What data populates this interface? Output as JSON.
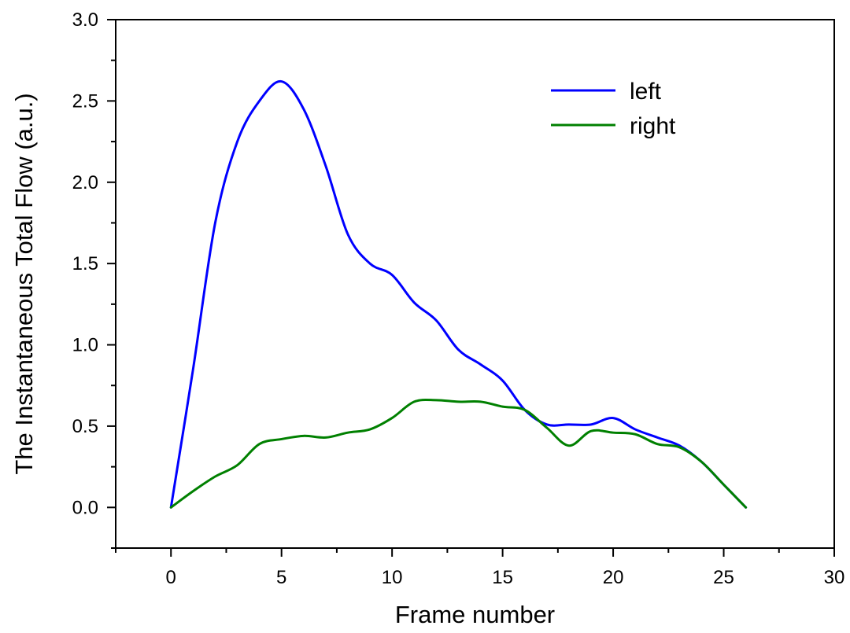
{
  "chart_data": {
    "type": "line",
    "title": "",
    "xlabel": "Frame number",
    "ylabel": "The Instantaneous Total Flow (a.u.)",
    "xlim": [
      -2.5,
      30
    ],
    "ylim": [
      -0.25,
      3.0
    ],
    "x_ticks": [
      0,
      5,
      10,
      15,
      20,
      25,
      30
    ],
    "y_ticks": [
      0.0,
      0.5,
      1.0,
      1.5,
      2.0,
      2.5,
      3.0
    ],
    "x_tick_labels": [
      "0",
      "5",
      "10",
      "15",
      "20",
      "25",
      "30"
    ],
    "y_tick_labels": [
      "0.0",
      "0.5",
      "1.0",
      "1.5",
      "2.0",
      "2.5",
      "3.0"
    ],
    "grid": false,
    "legend_position": "top-right",
    "x": [
      0,
      1,
      2,
      3,
      4,
      5,
      6,
      7,
      8,
      9,
      10,
      11,
      12,
      13,
      14,
      15,
      16,
      17,
      18,
      19,
      20,
      21,
      22,
      23,
      24,
      25,
      26
    ],
    "series": [
      {
        "name": "left",
        "color": "#0000ff",
        "values": [
          0.0,
          0.85,
          1.75,
          2.25,
          2.5,
          2.62,
          2.45,
          2.1,
          1.68,
          1.5,
          1.43,
          1.26,
          1.15,
          0.97,
          0.88,
          0.78,
          0.6,
          0.51,
          0.51,
          0.51,
          0.55,
          0.48,
          0.43,
          0.38,
          0.28,
          0.14,
          0.0
        ]
      },
      {
        "name": "right",
        "color": "#008000",
        "values": [
          0.0,
          0.1,
          0.19,
          0.26,
          0.39,
          0.42,
          0.44,
          0.43,
          0.46,
          0.48,
          0.55,
          0.65,
          0.66,
          0.65,
          0.65,
          0.62,
          0.6,
          0.49,
          0.38,
          0.47,
          0.46,
          0.45,
          0.39,
          0.37,
          0.28,
          0.14,
          0.0
        ]
      }
    ]
  }
}
